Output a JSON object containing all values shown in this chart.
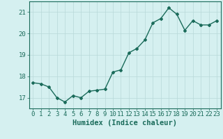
{
  "x": [
    0,
    1,
    2,
    3,
    4,
    5,
    6,
    7,
    8,
    9,
    10,
    11,
    12,
    13,
    14,
    15,
    16,
    17,
    18,
    19,
    20,
    21,
    22,
    23
  ],
  "y": [
    17.7,
    17.65,
    17.5,
    17.0,
    16.8,
    17.1,
    17.0,
    17.3,
    17.35,
    17.4,
    18.2,
    18.3,
    19.1,
    19.3,
    19.7,
    20.5,
    20.7,
    21.2,
    20.9,
    20.15,
    20.6,
    20.4,
    20.4,
    20.6
  ],
  "line_color": "#1a6b5a",
  "marker": "D",
  "marker_size": 2,
  "bg_color": "#d5f0f0",
  "grid_color": "#b8d8d8",
  "axis_color": "#1a6b5a",
  "tick_color": "#1a6b5a",
  "xlabel": "Humidex (Indice chaleur)",
  "ylabel": "",
  "ylim": [
    16.5,
    21.5
  ],
  "xlim": [
    -0.5,
    23.5
  ],
  "yticks": [
    17,
    18,
    19,
    20,
    21
  ],
  "xticks": [
    0,
    1,
    2,
    3,
    4,
    5,
    6,
    7,
    8,
    9,
    10,
    11,
    12,
    13,
    14,
    15,
    16,
    17,
    18,
    19,
    20,
    21,
    22,
    23
  ],
  "font_size": 6.5,
  "xlabel_fontsize": 7.5,
  "linewidth": 1.0
}
